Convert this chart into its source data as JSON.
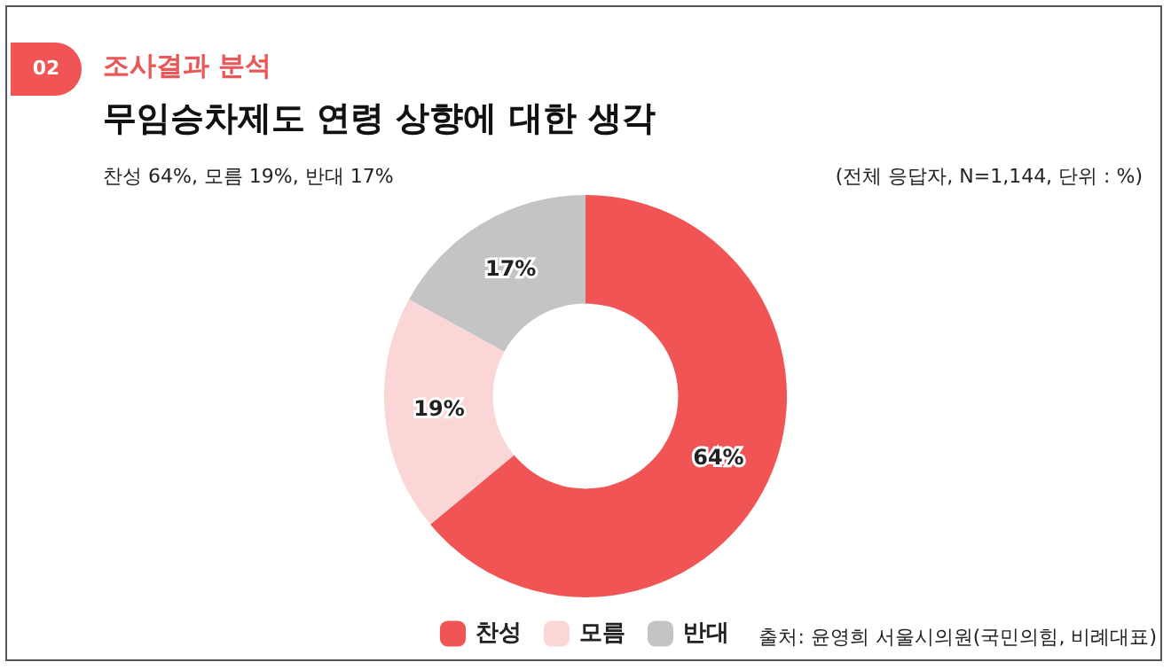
{
  "chart_data": {
    "type": "donut",
    "subtitle": "조사결과 분석",
    "title": "무임승차제도 연령 상향에 대한 생각",
    "annotations": [
      "02",
      "찬성 64%, 모름 19%, 반대 17%",
      "(전체 응답자, N=1,144, 단위 : %)",
      "출처: 윤영희 서울시의원(국민의힘, 비례대표)"
    ],
    "categories": [
      "찬성",
      "모름",
      "반대"
    ],
    "values": [
      64,
      19,
      17
    ],
    "colors": [
      "#f05454",
      "#fbd6d6",
      "#c4c4c4"
    ],
    "value_labels": [
      "64%",
      "19%",
      "17%"
    ],
    "legend": "bottom"
  }
}
